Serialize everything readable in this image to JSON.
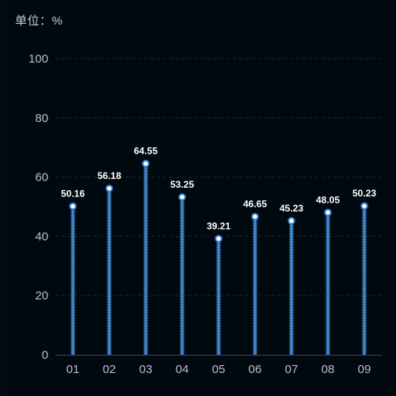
{
  "unit_label": "单位：%",
  "chart_data": {
    "type": "bar",
    "categories": [
      "01",
      "02",
      "03",
      "04",
      "05",
      "06",
      "07",
      "08",
      "09"
    ],
    "values": [
      50.16,
      56.18,
      64.55,
      53.25,
      39.21,
      46.65,
      45.23,
      48.05,
      50.23
    ],
    "value_labels": [
      "50.16",
      "56.18",
      "64.55",
      "53.25",
      "39.21",
      "46.65",
      "45.23",
      "48.05",
      "50.23"
    ],
    "y_ticks": [
      "0",
      "20",
      "40",
      "60",
      "80",
      "100"
    ],
    "ylim": [
      0,
      100
    ],
    "grid": true,
    "legend": "none",
    "colors": {
      "bar": "#3a86d6",
      "bar_highlight": "#9cc8f2",
      "marker_fill": "#ffffff",
      "marker_stroke": "#2f7fd0",
      "grid": "#1c2633"
    }
  }
}
